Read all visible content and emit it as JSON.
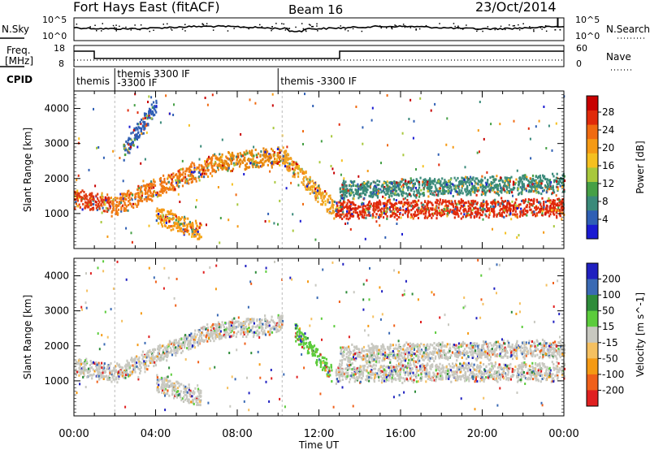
{
  "header": {
    "radar": "Fort Hays East (fitACF)",
    "beam": "Beam 16",
    "date": "23/Oct/2014"
  },
  "noise_panel": {
    "left_label": "N.Sky",
    "left_ticks": [
      "10^5",
      "10^0"
    ],
    "right_label": "N.Search",
    "right_ticks": [
      "10^5",
      "10^0"
    ]
  },
  "freq_panel": {
    "left_label_line1": "Freq.",
    "left_label_line2": "[MHz]",
    "left_ticks": [
      "18",
      "8"
    ],
    "right_label": "Nave",
    "right_ticks": [
      "60",
      "0"
    ]
  },
  "cpid_panel": {
    "label": "CPID",
    "segments": [
      {
        "start_hour": 0.0,
        "line1": "themis",
        "line2": ""
      },
      {
        "start_hour": 2.0,
        "line1": "themis 3300 IF",
        "line2": "-3300 IF"
      },
      {
        "start_hour": 10.0,
        "line1": "themis -3300 IF",
        "line2": ""
      }
    ]
  },
  "chart_data": [
    {
      "type": "heatmap",
      "name": "power",
      "xlabel": "",
      "ylabel": "Slant Range [km]",
      "x_range_hours": [
        0,
        24
      ],
      "ylim": [
        0,
        4500
      ],
      "yticks": [
        1000,
        2000,
        3000,
        4000
      ],
      "colorbar": {
        "label": "Power [dB]",
        "ticks": [
          4,
          8,
          12,
          16,
          20,
          24,
          28
        ],
        "colors": [
          "#1a1ad2",
          "#2f5fb4",
          "#3a8a7a",
          "#46a046",
          "#a8c83c",
          "#f5c020",
          "#f59a14",
          "#f06a10",
          "#e02a0a",
          "#c80000"
        ]
      },
      "scatter_bands": [
        {
          "x0": 0.0,
          "x1": 1.8,
          "y_start": 1450,
          "y_end": 1300,
          "color": "#e03a10"
        },
        {
          "x0": 1.8,
          "x1": 7.0,
          "y_start": 1200,
          "y_end": 2500,
          "color": "#f07a14"
        },
        {
          "x0": 7.0,
          "x1": 10.2,
          "y_start": 2500,
          "y_end": 2650,
          "color": "#e8860e"
        },
        {
          "x0": 10.2,
          "x1": 12.8,
          "y_start": 2650,
          "y_end": 1100,
          "color": "#f0a020"
        },
        {
          "x0": 12.8,
          "x1": 24.0,
          "y_start": 1150,
          "y_end": 1200,
          "color": "#e02a0a"
        },
        {
          "x0": 13.0,
          "x1": 24.0,
          "y_start": 1700,
          "y_end": 1900,
          "color": "#3a8a7a"
        },
        {
          "x0": 4.0,
          "x1": 6.2,
          "y_start": 1000,
          "y_end": 500,
          "color": "#f59a14"
        },
        {
          "x0": 2.4,
          "x1": 4.0,
          "y_start": 2800,
          "y_end": 4100,
          "color": "#2f5fb4"
        }
      ]
    },
    {
      "type": "heatmap",
      "name": "velocity",
      "xlabel": "Time UT",
      "ylabel": "Slant Range [km]",
      "x_range_hours": [
        0,
        24
      ],
      "xtick_labels": [
        "00:00",
        "04:00",
        "08:00",
        "12:00",
        "16:00",
        "20:00",
        "00:00"
      ],
      "ylim": [
        0,
        4500
      ],
      "yticks": [
        1000,
        2000,
        3000,
        4000
      ],
      "colorbar": {
        "label": "Velocity [m s^-1]",
        "ticks": [
          "200",
          "100",
          "50",
          "15",
          "-15",
          "-50",
          "-100",
          "-200"
        ],
        "colors": [
          "#2020c0",
          "#3a6ab4",
          "#2e8c3a",
          "#5ccc3c",
          "#c8c8c0",
          "#f5c060",
          "#f59a14",
          "#f0601a",
          "#e02020"
        ]
      },
      "scatter_bands": [
        {
          "x0": 0.0,
          "x1": 1.8,
          "y_start": 1450,
          "y_end": 1300,
          "color": "#c8c8c0"
        },
        {
          "x0": 1.8,
          "x1": 7.0,
          "y_start": 1200,
          "y_end": 2500,
          "color": "#c8c8c0"
        },
        {
          "x0": 7.0,
          "x1": 10.2,
          "y_start": 2500,
          "y_end": 2650,
          "color": "#c8c8c0"
        },
        {
          "x0": 10.8,
          "x1": 12.6,
          "y_start": 2450,
          "y_end": 1250,
          "color": "#5ccc3c"
        },
        {
          "x0": 12.8,
          "x1": 24.0,
          "y_start": 1250,
          "y_end": 1300,
          "color": "#c8c8c0"
        },
        {
          "x0": 13.0,
          "x1": 24.0,
          "y_start": 1800,
          "y_end": 1950,
          "color": "#c8c8c0"
        },
        {
          "x0": 4.0,
          "x1": 6.2,
          "y_start": 1000,
          "y_end": 500,
          "color": "#c8c8c0"
        }
      ]
    }
  ]
}
